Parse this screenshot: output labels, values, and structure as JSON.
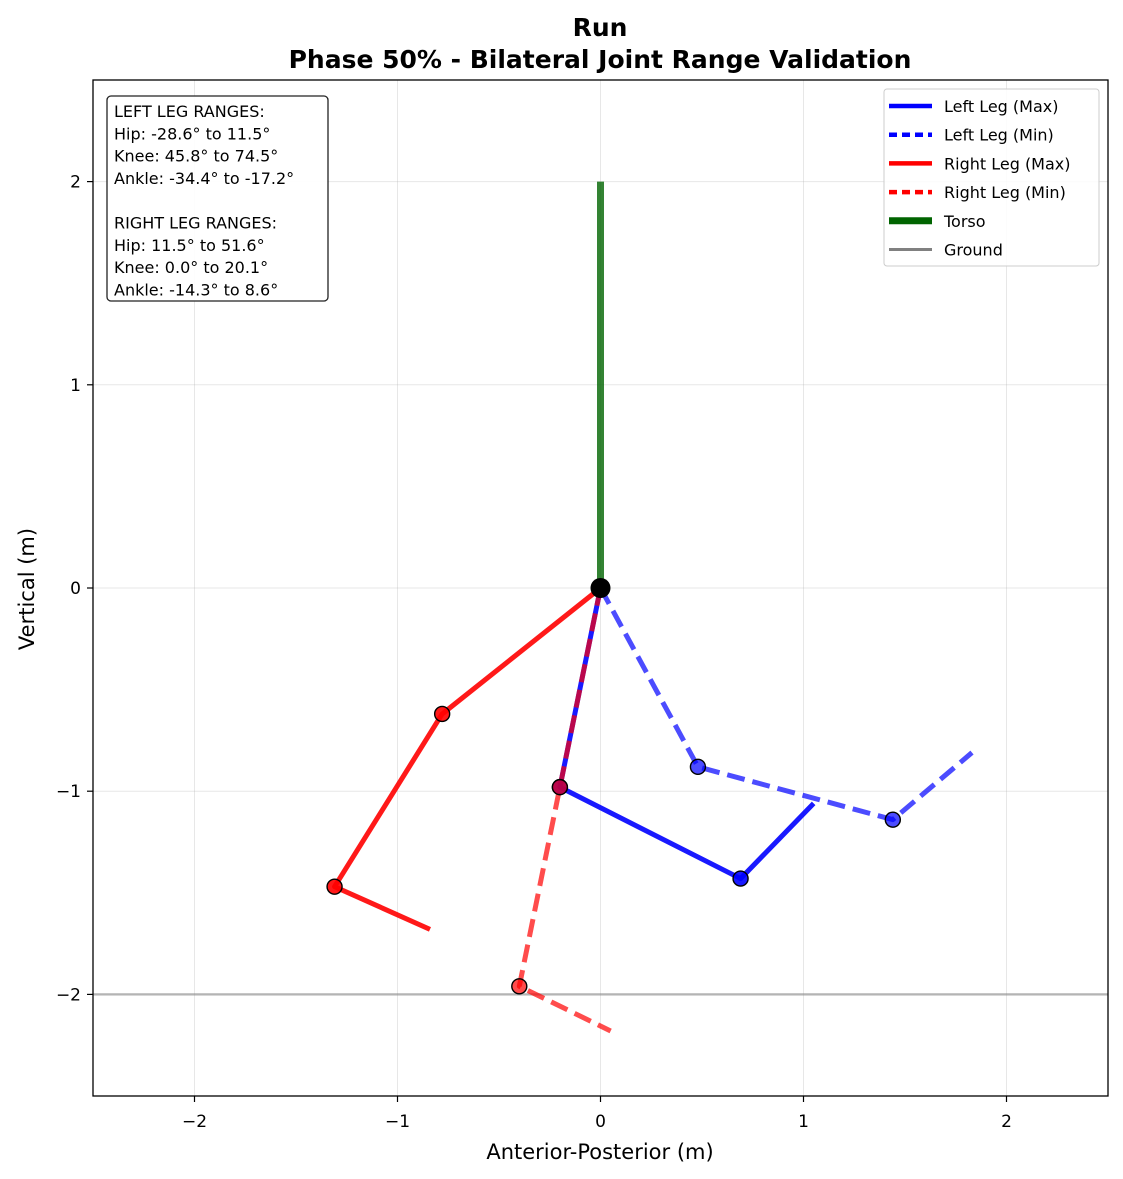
{
  "chart_data": {
    "type": "line",
    "title": "Run",
    "subtitle": "Phase 50% - Bilateral Joint Range Validation",
    "xlabel": "Anterior-Posterior (m)",
    "ylabel": "Vertical (m)",
    "xlim": [
      -2.5,
      2.5
    ],
    "ylim": [
      -2.5,
      2.5
    ],
    "xticks": [
      -2,
      -1,
      0,
      1,
      2
    ],
    "yticks": [
      -2,
      -1,
      0,
      1,
      2
    ],
    "xtick_labels": [
      "−2",
      "−1",
      "0",
      "1",
      "2"
    ],
    "ytick_labels": [
      "−2",
      "−1",
      "0",
      "1",
      "2"
    ],
    "grid": true,
    "legend_position": "top-right",
    "info_box": {
      "position": "top-left",
      "lines": [
        "LEFT LEG RANGES:",
        "Hip: -28.6° to 11.5°",
        "Knee: 45.8° to 74.5°",
        "Ankle: -34.4° to -17.2°",
        "",
        "RIGHT LEG RANGES:",
        "Hip: 11.5° to 51.6°",
        "Knee: 0.0° to 20.1°",
        "Ankle: -14.3° to 8.6°"
      ]
    },
    "series": [
      {
        "name": "Torso",
        "color": "#006400",
        "style": "solid",
        "opacity": 0.8,
        "points": [
          [
            0,
            0
          ],
          [
            0,
            2.0
          ]
        ],
        "joints": []
      },
      {
        "name": "Ground",
        "color": "#808080",
        "style": "solid",
        "opacity": 0.5,
        "points": [
          [
            -2.5,
            -2.0
          ],
          [
            2.5,
            -2.0
          ]
        ],
        "joints": []
      },
      {
        "name": "Left Leg (Max)",
        "color": "#0000ff",
        "style": "solid",
        "opacity": 0.9,
        "points": [
          [
            0,
            0
          ],
          [
            -0.2,
            -0.98
          ],
          [
            0.69,
            -1.43
          ],
          [
            1.05,
            -1.06
          ]
        ],
        "joints": [
          [
            -0.2,
            -0.98
          ],
          [
            0.69,
            -1.43
          ]
        ]
      },
      {
        "name": "Left Leg (Min)",
        "color": "#0000ff",
        "style": "dashed",
        "opacity": 0.7,
        "points": [
          [
            0,
            0
          ],
          [
            0.48,
            -0.88
          ],
          [
            1.44,
            -1.14
          ],
          [
            1.83,
            -0.81
          ]
        ],
        "joints": [
          [
            0.48,
            -0.88
          ],
          [
            1.44,
            -1.14
          ]
        ]
      },
      {
        "name": "Right Leg (Max)",
        "color": "#ff0000",
        "style": "solid",
        "opacity": 0.9,
        "points": [
          [
            0,
            0
          ],
          [
            -0.78,
            -0.62
          ],
          [
            -1.31,
            -1.47
          ],
          [
            -0.84,
            -1.68
          ]
        ],
        "joints": [
          [
            -0.78,
            -0.62
          ],
          [
            -1.31,
            -1.47
          ]
        ]
      },
      {
        "name": "Right Leg (Min)",
        "color": "#ff0000",
        "style": "dashed",
        "opacity": 0.7,
        "points": [
          [
            0,
            0
          ],
          [
            -0.2,
            -0.98
          ],
          [
            -0.4,
            -1.96
          ],
          [
            0.05,
            -2.18
          ]
        ],
        "joints": [
          [
            -0.2,
            -0.98
          ],
          [
            -0.4,
            -1.96
          ]
        ]
      }
    ],
    "legend": [
      {
        "label": "Left Leg (Max)",
        "color": "#0000ff",
        "style": "solid"
      },
      {
        "label": "Left Leg (Min)",
        "color": "#0000ff",
        "style": "dotted"
      },
      {
        "label": "Right Leg (Max)",
        "color": "#ff0000",
        "style": "solid"
      },
      {
        "label": "Right Leg (Min)",
        "color": "#ff0000",
        "style": "dotted"
      },
      {
        "label": "Torso",
        "color": "#006400",
        "style": "thick"
      },
      {
        "label": "Ground",
        "color": "#808080",
        "style": "solid"
      }
    ],
    "hip_marker": [
      0,
      0
    ]
  }
}
